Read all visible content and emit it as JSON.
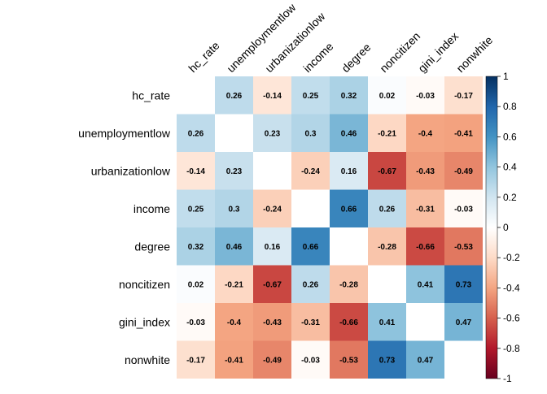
{
  "chart_data": {
    "type": "heatmap",
    "title": "",
    "variables": [
      "hc_rate",
      "unemploymentlow",
      "urbanizationlow",
      "income",
      "degree",
      "noncitizen",
      "gini_index",
      "nonwhite"
    ],
    "matrix": [
      [
        null,
        0.26,
        -0.14,
        0.25,
        0.32,
        0.02,
        -0.03,
        -0.17
      ],
      [
        0.26,
        null,
        0.23,
        0.3,
        0.46,
        -0.21,
        -0.4,
        -0.41
      ],
      [
        -0.14,
        0.23,
        null,
        -0.24,
        0.16,
        -0.67,
        -0.43,
        -0.49
      ],
      [
        0.25,
        0.3,
        -0.24,
        null,
        0.66,
        0.26,
        -0.31,
        -0.03
      ],
      [
        0.32,
        0.46,
        0.16,
        0.66,
        null,
        -0.28,
        -0.66,
        -0.53
      ],
      [
        0.02,
        -0.21,
        -0.67,
        0.26,
        -0.28,
        null,
        0.41,
        0.73
      ],
      [
        -0.03,
        -0.4,
        -0.43,
        -0.31,
        -0.66,
        0.41,
        null,
        0.47
      ],
      [
        -0.17,
        -0.41,
        -0.49,
        -0.03,
        -0.53,
        0.73,
        0.47,
        null
      ]
    ],
    "diagonal": "blank",
    "color_scale": {
      "range": [
        -1,
        1
      ],
      "ticks": [
        1,
        0.8,
        0.6,
        0.4,
        0.2,
        0,
        -0.2,
        -0.4,
        -0.6,
        -0.8,
        -1
      ],
      "colors": [
        "#67001f",
        "#b2182b",
        "#d6604d",
        "#f4a582",
        "#fddbc7",
        "#ffffff",
        "#d1e5f0",
        "#92c5de",
        "#4393c3",
        "#2166ac",
        "#053061"
      ]
    },
    "legend": "right",
    "grid": false
  }
}
